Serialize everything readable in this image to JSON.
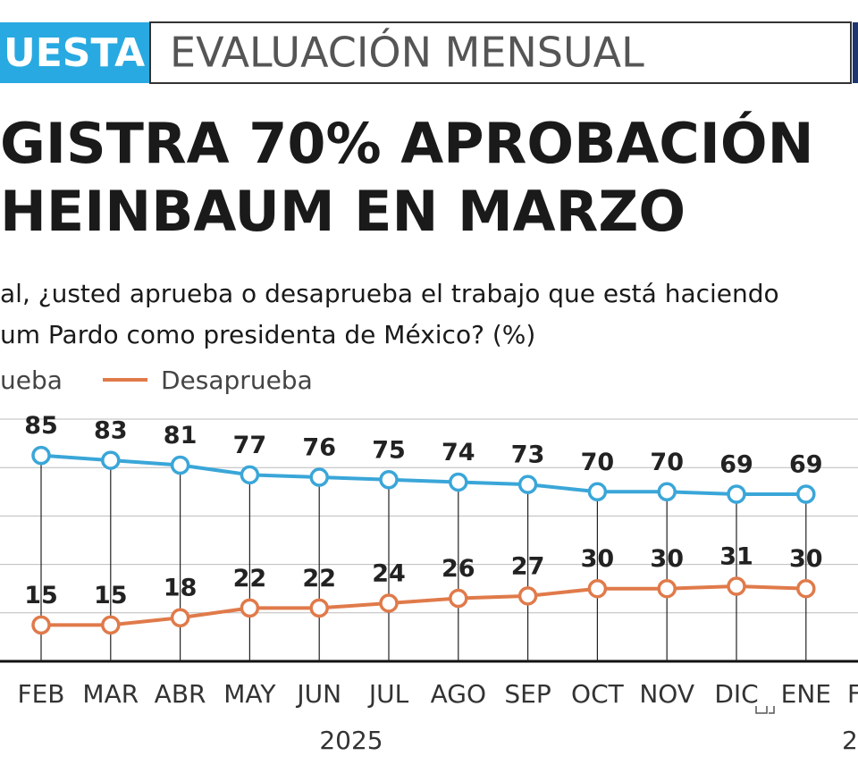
{
  "header": {
    "tag": "UESTA",
    "section": "EVALUACIÓN MENSUAL"
  },
  "chart_data": {
    "type": "line",
    "title": [
      "GISTRA 70% APROBACIÓN",
      "HEINBAUM EN MARZO"
    ],
    "subtitle": [
      "al, ¿usted aprueba o desaprueba el trabajo que está haciendo",
      "um Pardo como presidenta de México? (%)"
    ],
    "categories": [
      "FEB",
      "MAR",
      "ABR",
      "MAY",
      "JUN",
      "JUL",
      "AGO",
      "SEP",
      "OCT",
      "NOV",
      "DIC",
      "ENE",
      "F"
    ],
    "series": [
      {
        "name": "ueba",
        "color": "#3aa6d8",
        "values": [
          85,
          83,
          81,
          77,
          76,
          75,
          74,
          73,
          70,
          70,
          69,
          69,
          null
        ]
      },
      {
        "name": "Desaprueba",
        "color": "#e07a4a",
        "values": [
          15,
          15,
          18,
          22,
          22,
          24,
          26,
          27,
          30,
          30,
          31,
          30,
          null
        ]
      }
    ],
    "year_labels": [
      "2025",
      "2"
    ],
    "ylim": [
      0,
      100
    ],
    "yticks": [
      20,
      40,
      60,
      80,
      100
    ],
    "grid": true
  }
}
